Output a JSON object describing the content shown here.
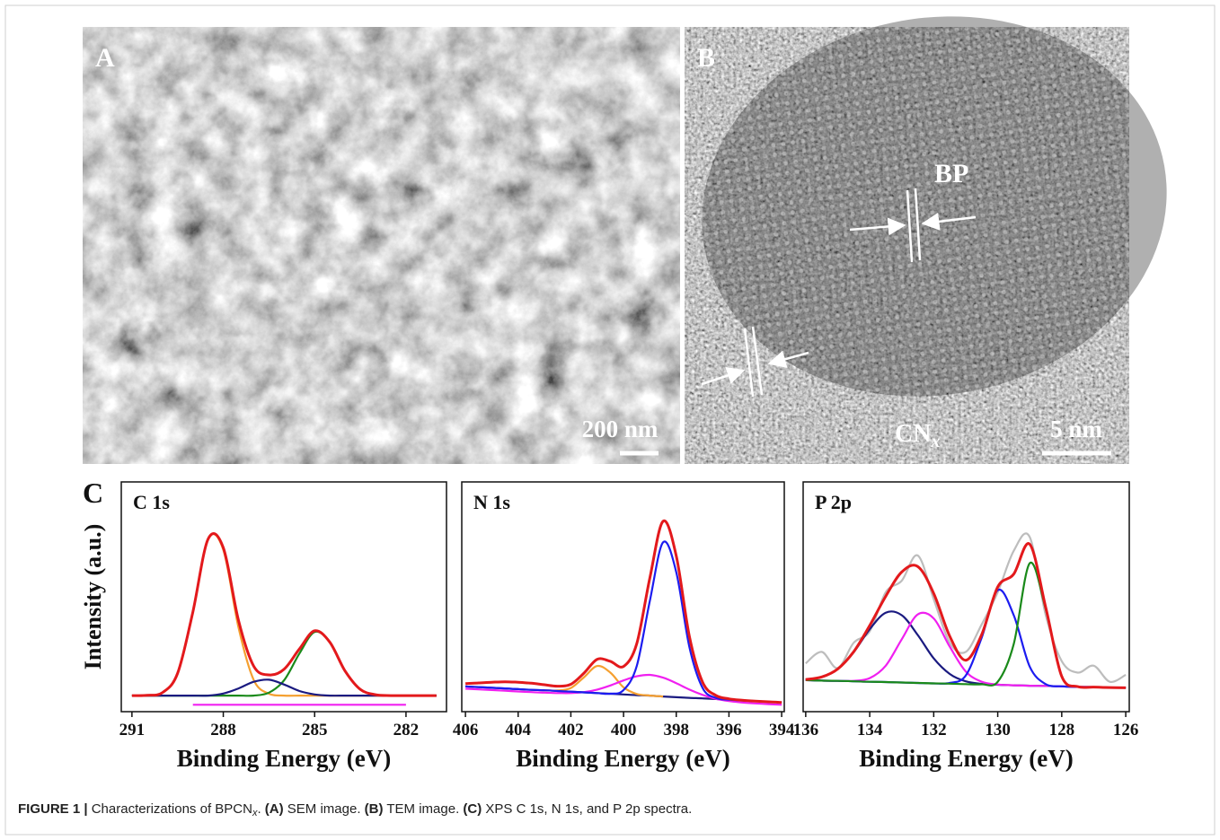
{
  "panel_a": {
    "label": "A",
    "scale_bar": "200 nm"
  },
  "panel_b": {
    "label": "B",
    "scale_bar": "5 nm",
    "annotation_bp": "BP",
    "annotation_cn": {
      "text": "CN",
      "sub": "x"
    }
  },
  "panel_c": {
    "label": "C",
    "ylabel": "Intensity (a.u.)"
  },
  "chart_data": [
    {
      "type": "line",
      "title": "C 1s",
      "xlabel": "Binding Energy (eV)",
      "x": [
        291,
        290.5,
        290,
        289.5,
        289,
        288.5,
        288,
        287.5,
        287,
        286.5,
        286,
        285.5,
        285,
        284.5,
        284,
        283.5,
        283,
        282.5,
        282,
        281.5,
        281
      ],
      "xlim": [
        291.35,
        280.67
      ],
      "xticks": [
        291,
        288,
        285,
        282
      ],
      "ylim": [
        0,
        100
      ],
      "series": [
        {
          "color": "#f5a030",
          "values": [
            7,
            7.1,
            8.3,
            16.7,
            43.4,
            75.1,
            70.5,
            36.6,
            13.8,
            7.8,
            7,
            7,
            7,
            7,
            7,
            7,
            7,
            7,
            7,
            7,
            7
          ]
        },
        {
          "color": "#1a8a1a",
          "values": [
            7,
            7,
            7,
            7,
            7,
            7,
            7,
            7,
            7,
            8.3,
            13.7,
            25.3,
            34.7,
            30.2,
            17.7,
            9.7,
            7.4,
            7,
            7,
            7,
            7
          ]
        },
        {
          "color": "#f020f0",
          "values": [
            null,
            null,
            null,
            null,
            3,
            3,
            3,
            3,
            3,
            3,
            3,
            3,
            3,
            3,
            3,
            3,
            3,
            3,
            3,
            null,
            null
          ]
        },
        {
          "color": "#1a1a80",
          "values": [
            7,
            7,
            7,
            7,
            7,
            7,
            7.9,
            10.1,
            13.0,
            13.9,
            11.8,
            9.0,
            7.5,
            7,
            7,
            7,
            7,
            7,
            7,
            7,
            7
          ]
        },
        {
          "color": "#e3191c",
          "values": [
            7,
            7.1,
            8.3,
            16.7,
            43.4,
            75.1,
            71.4,
            39.7,
            19.8,
            16.0,
            18.5,
            27.3,
            35.2,
            30.2,
            17.7,
            9.7,
            7.4,
            7,
            7,
            7,
            7
          ]
        }
      ]
    },
    {
      "type": "line",
      "title": "N 1s",
      "xlabel": "Binding Energy (eV)",
      "x": [
        406,
        405.5,
        405,
        404.5,
        404,
        403.5,
        403,
        402.5,
        402,
        401.5,
        401,
        400.5,
        400,
        399.5,
        399,
        398.5,
        398,
        397.5,
        397,
        396.5,
        396,
        395.5,
        395,
        394.5,
        394
      ],
      "xlim": [
        406.14,
        393.9
      ],
      "xticks": [
        406,
        404,
        402,
        400,
        398,
        396,
        394
      ],
      "ylim": [
        0,
        100
      ],
      "series": [
        {
          "color": "#1a1a80",
          "values": [
            11.0,
            10.7,
            10.4,
            10.1,
            9.8,
            9.5,
            9.3,
            9.0,
            8.7,
            8.4,
            8.1,
            7.8,
            7.5,
            7.2,
            7.0,
            6.6,
            6.3,
            6.0,
            5.8,
            5.5,
            5.2,
            4.9,
            4.6,
            4.3,
            4.0
          ]
        },
        {
          "color": "#f5a030",
          "values": [
            null,
            null,
            null,
            null,
            null,
            null,
            9.3,
            9.2,
            10.3,
            15.0,
            19.9,
            17.0,
            10.6,
            7.7,
            7.0,
            6.6,
            null,
            null,
            null,
            null,
            null,
            null,
            null,
            null,
            null
          ]
        },
        {
          "color": "#f020f0",
          "values": [
            10.0,
            9.7,
            9.4,
            9.1,
            8.8,
            8.5,
            8.3,
            8.1,
            8.1,
            8.5,
            9.6,
            11.4,
            13.6,
            15.4,
            16.0,
            14.8,
            12.4,
            9.6,
            7.3,
            5.6,
            4.6,
            4.0,
            3.6,
            3.3,
            3.0
          ]
        },
        {
          "color": "#1c1cf0",
          "values": [
            11.0,
            10.7,
            10.4,
            10.1,
            9.8,
            9.5,
            9.3,
            9.0,
            8.7,
            8.4,
            8.1,
            7.8,
            9.4,
            19.9,
            48.3,
            73.7,
            60.8,
            28.1,
            10.3,
            6.0,
            5.2,
            4.9,
            4.6,
            4.3,
            4.0
          ]
        },
        {
          "color": "#e3191c",
          "values": [
            12.2,
            12.5,
            12.8,
            13.0,
            12.8,
            12.4,
            11.7,
            11.1,
            11.9,
            16.8,
            22.8,
            21.9,
            19.7,
            29.6,
            58.3,
            82.9,
            67.9,
            32.7,
            12.8,
            7.1,
            5.6,
            5.0,
            4.6,
            4.3,
            4.0
          ]
        }
      ]
    },
    {
      "type": "line",
      "title": "P 2p",
      "xlabel": "Binding Energy (eV)",
      "x": [
        136,
        135.5,
        135,
        134.5,
        134,
        133.5,
        133,
        132.5,
        132,
        131.5,
        131,
        130.5,
        130,
        129.5,
        129,
        128.5,
        128,
        127.5,
        127,
        126.5,
        126
      ],
      "xlim": [
        136.08,
        125.89
      ],
      "xticks": [
        136,
        134,
        132,
        130,
        128,
        126
      ],
      "ylim": [
        0,
        100
      ],
      "series": [
        {
          "color": "#bdbdbd",
          "values": [
            21,
            26,
            19,
            30,
            35,
            52,
            57,
            68,
            49,
            30,
            26,
            38,
            52,
            70,
            76,
            42,
            22,
            17,
            20,
            13,
            16
          ]
        },
        {
          "color": "#1a1a80",
          "values": [
            14.0,
            15.1,
            18.6,
            25.9,
            35.9,
            43.1,
            42.0,
            33.4,
            23.2,
            16.4,
            13.2,
            12.1,
            11.7,
            11.5,
            11.3,
            11.2,
            11.0,
            10.8,
            10.7,
            10.5,
            10.4
          ]
        },
        {
          "color": "#f020f0",
          "values": [
            13.7,
            13.5,
            13.4,
            13.4,
            14.6,
            20.0,
            31.5,
            42.3,
            40.6,
            28.3,
            17.5,
            13.0,
            11.8,
            11.5,
            11.3,
            11.2,
            11.0,
            10.8,
            10.7,
            10.5,
            10.4
          ]
        },
        {
          "color": "#1c1cf0",
          "values": [
            13.7,
            13.5,
            13.4,
            13.2,
            13.0,
            12.9,
            12.7,
            12.5,
            12.3,
            12.5,
            15.7,
            32.3,
            52.9,
            42.0,
            19.6,
            12.0,
            11.0,
            10.8,
            10.7,
            10.5,
            10.4
          ]
        },
        {
          "color": "#1a8a1a",
          "values": [
            13.7,
            13.5,
            13.4,
            13.2,
            13.0,
            12.9,
            12.7,
            12.5,
            12.3,
            12.2,
            12.0,
            11.9,
            13.0,
            29.4,
            64.6,
            44.6,
            15.4,
            10.9,
            10.7,
            10.5,
            10.4
          ]
        },
        {
          "color": "#e3191c",
          "values": [
            14.0,
            15.1,
            18.6,
            26.1,
            37.5,
            50.2,
            60.8,
            63.2,
            51.5,
            32.8,
            22.4,
            33.6,
            54.3,
            59.9,
            72.9,
            45.4,
            15.4,
            10.9,
            10.7,
            10.5,
            10.4
          ]
        }
      ]
    }
  ],
  "caption": {
    "label": "FIGURE 1 |",
    "parts": [
      {
        "text": " Characterizations of BPCN"
      },
      {
        "text": "x",
        "sub": true
      },
      {
        "text": ". "
      },
      {
        "text": "(A)",
        "bold": true
      },
      {
        "text": " SEM image. "
      },
      {
        "text": "(B)",
        "bold": true
      },
      {
        "text": " TEM image. "
      },
      {
        "text": "(C)",
        "bold": true
      },
      {
        "text": " XPS C 1s, N 1s, and P 2p spectra."
      }
    ]
  }
}
